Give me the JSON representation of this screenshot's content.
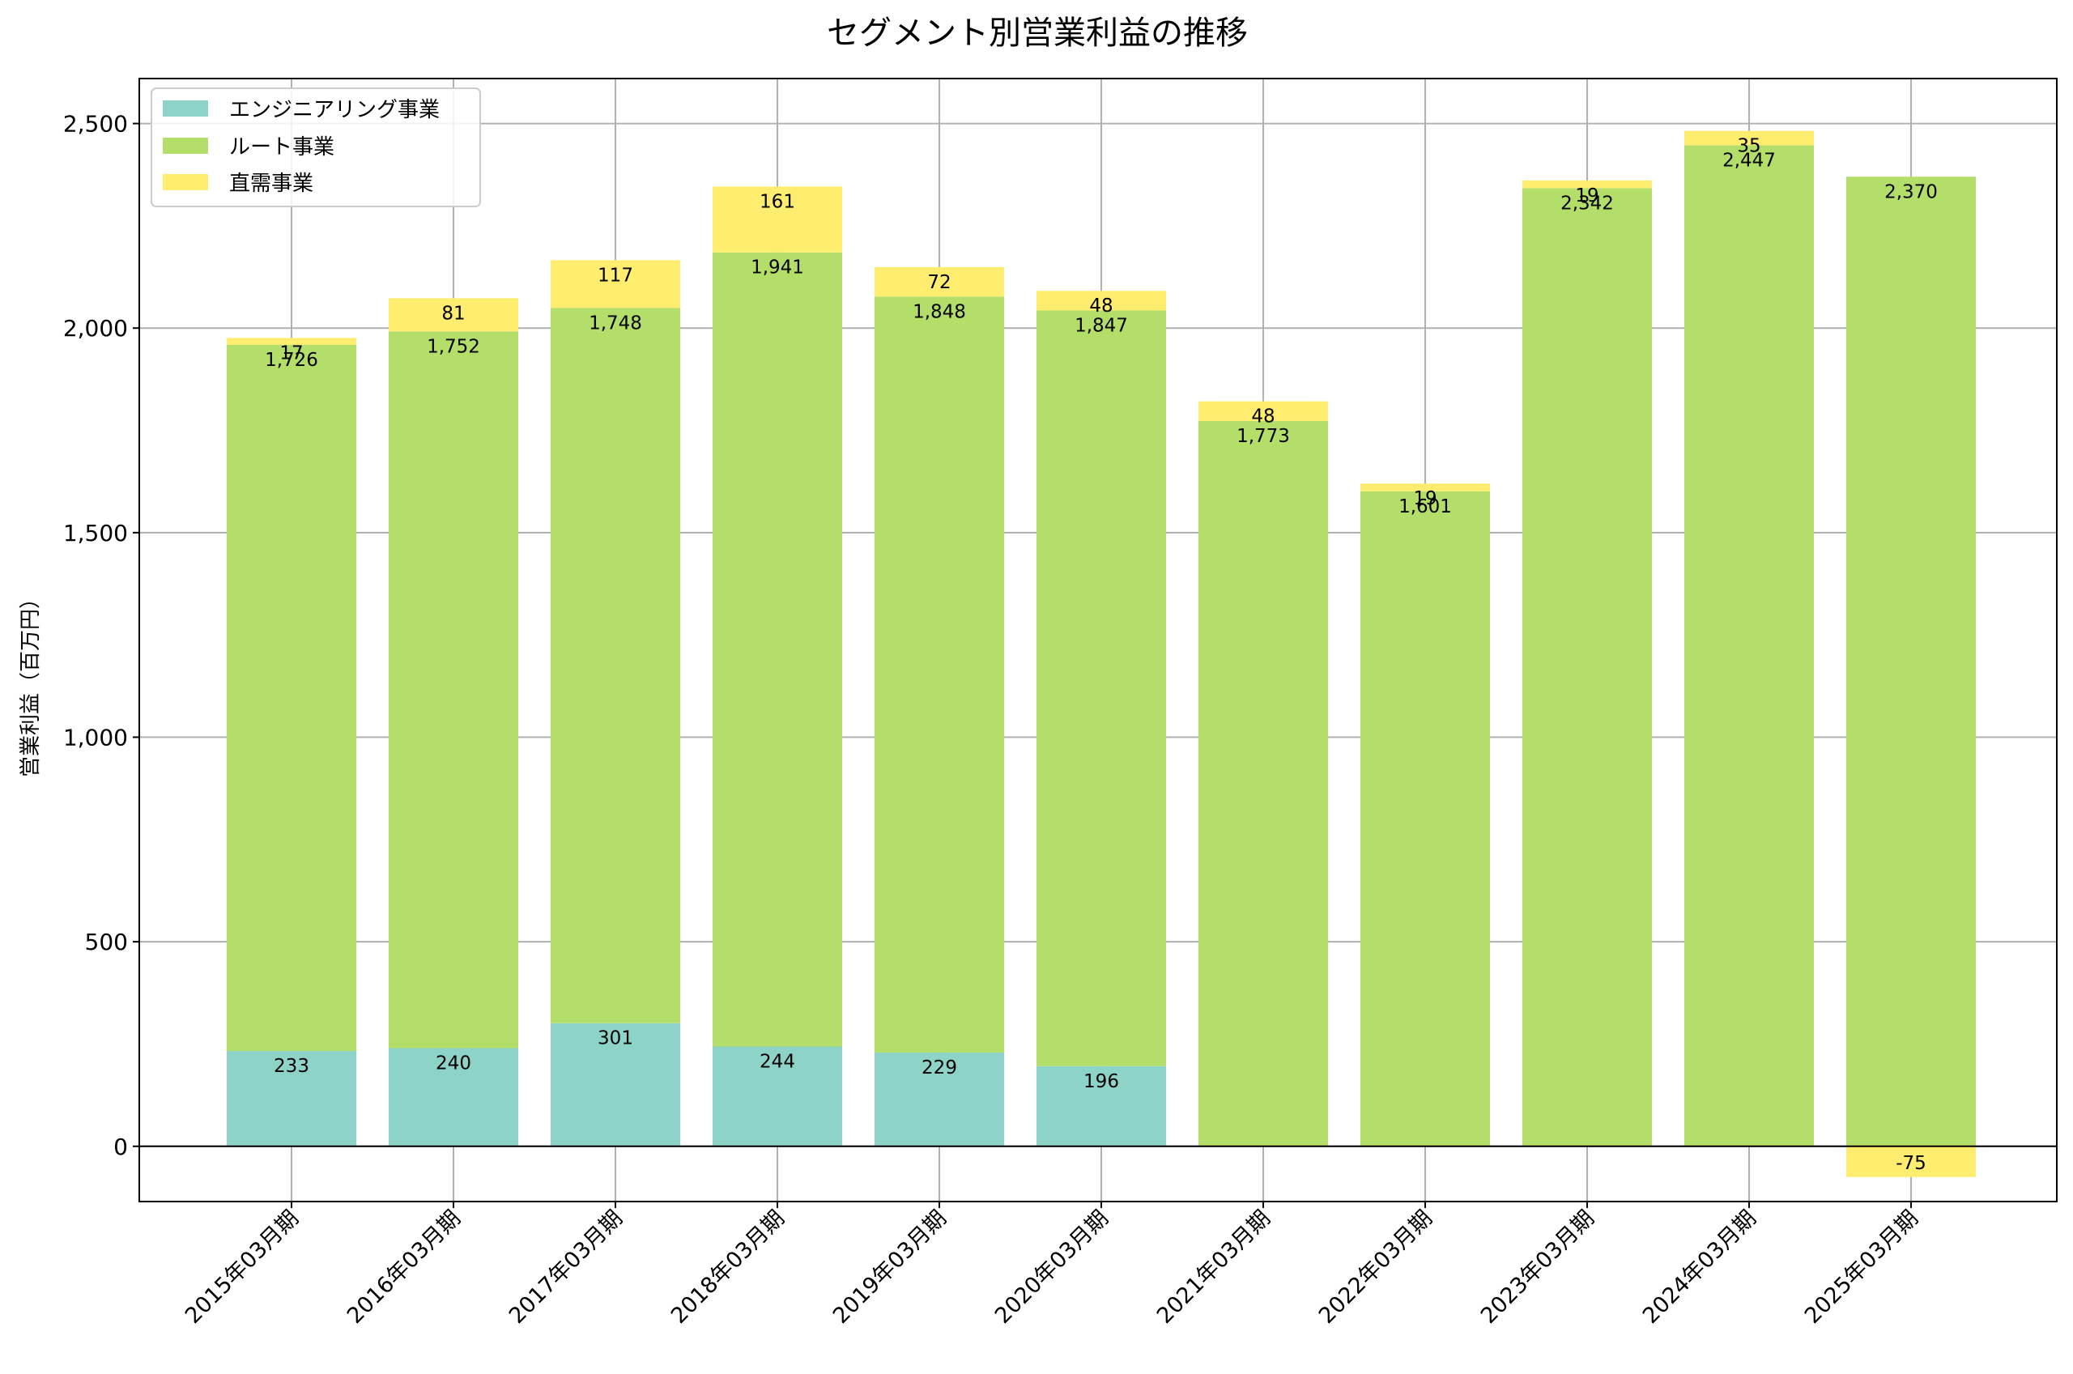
{
  "chart_data": {
    "type": "bar",
    "stacked": true,
    "title": "セグメント別営業利益の推移",
    "xlabel": "",
    "ylabel": "営業利益（百万円）",
    "ylim": [
      -135,
      2610
    ],
    "yticks": [
      0,
      500,
      1000,
      1500,
      2000,
      2500
    ],
    "ytick_labels": [
      "0",
      "500",
      "1,000",
      "1,500",
      "2,000",
      "2,500"
    ],
    "grid": true,
    "legend_position": "top-left",
    "categories": [
      "2015年03月期",
      "2016年03月期",
      "2017年03月期",
      "2018年03月期",
      "2019年03月期",
      "2020年03月期",
      "2021年03月期",
      "2022年03月期",
      "2023年03月期",
      "2024年03月期",
      "2025年03月期"
    ],
    "series": [
      {
        "name": "エンジニアリング事業",
        "color": "#8dd3c7",
        "values": [
          233,
          240,
          301,
          244,
          229,
          196,
          null,
          null,
          null,
          null,
          null
        ]
      },
      {
        "name": "ルート事業",
        "color": "#b3de69",
        "values": [
          1726,
          1752,
          1748,
          1941,
          1848,
          1847,
          1773,
          1601,
          2342,
          2447,
          2370
        ]
      },
      {
        "name": "直需事業",
        "color": "#ffed6f",
        "values": [
          17,
          81,
          117,
          161,
          72,
          48,
          48,
          19,
          19,
          35,
          -75
        ]
      }
    ]
  }
}
